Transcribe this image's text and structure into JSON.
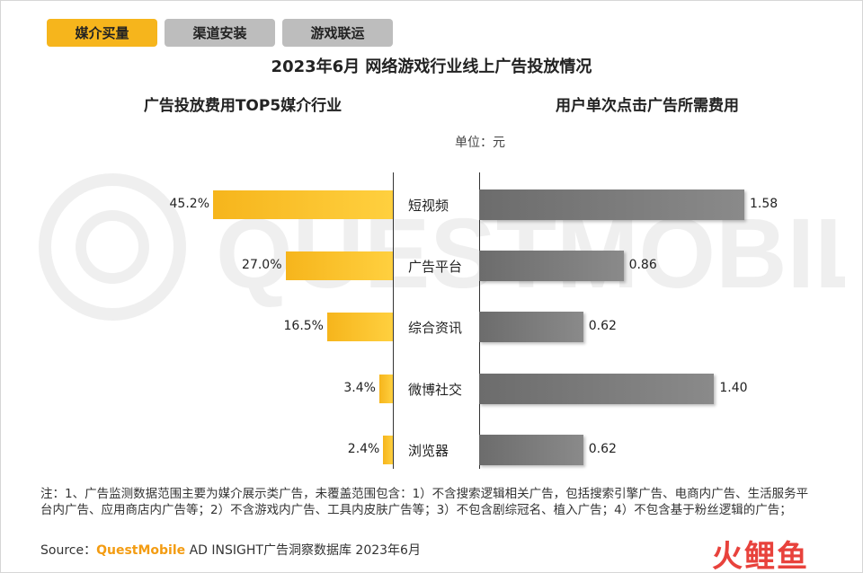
{
  "tabs": [
    {
      "label": "媒介买量",
      "active": true
    },
    {
      "label": "渠道安装",
      "active": false
    },
    {
      "label": "游戏联运",
      "active": false
    }
  ],
  "colors": {
    "accent": "#f6b51c",
    "bar_gray": "#7a7a7a",
    "inactive_tab": "#bdbdbd"
  },
  "chart_data": [
    {
      "type": "bar",
      "orientation": "horizontal",
      "title": "广告投放费用TOP5媒介行业",
      "categories": [
        "短视频",
        "广告平台",
        "综合资讯",
        "微博社交",
        "浏览器"
      ],
      "values": [
        45.2,
        27.0,
        16.5,
        3.4,
        2.4
      ],
      "labels": [
        "45.2%",
        "27.0%",
        "16.5%",
        "3.4%",
        "2.4%"
      ],
      "unit": "%",
      "direction": "right-to-left"
    },
    {
      "type": "bar",
      "orientation": "horizontal",
      "title": "用户单次点击广告所需费用",
      "categories": [
        "短视频",
        "广告平台",
        "综合资讯",
        "微博社交",
        "浏览器"
      ],
      "values": [
        1.58,
        0.86,
        0.62,
        1.4,
        0.62
      ],
      "labels": [
        "1.58",
        "0.86",
        "0.62",
        "1.40",
        "0.62"
      ],
      "unit": "元"
    }
  ],
  "main_title": "2023年6月 网络游戏行业线上广告投放情况",
  "unit_label": "单位：元",
  "notes": "注：1、广告监测数据范围主要为媒介展示类广告，未覆盖范围包含：1）不含搜索逻辑相关广告，包括搜索引擎广告、电商内广告、生活服务平台内广告、应用商店内广告等；2）不含游戏内广告、工具内皮肤广告等；3）不包含剧综冠名、植入广告；4）不包含基于粉丝逻辑的广告；",
  "source": {
    "prefix": "Source：",
    "brand": "QuestMobile",
    "rest": " AD INSIGHT广告洞察数据库 2023年6月"
  },
  "watermark_text": "QUESTMOBILE",
  "logo": {
    "part1": "火",
    "part2": "鲤鱼"
  }
}
